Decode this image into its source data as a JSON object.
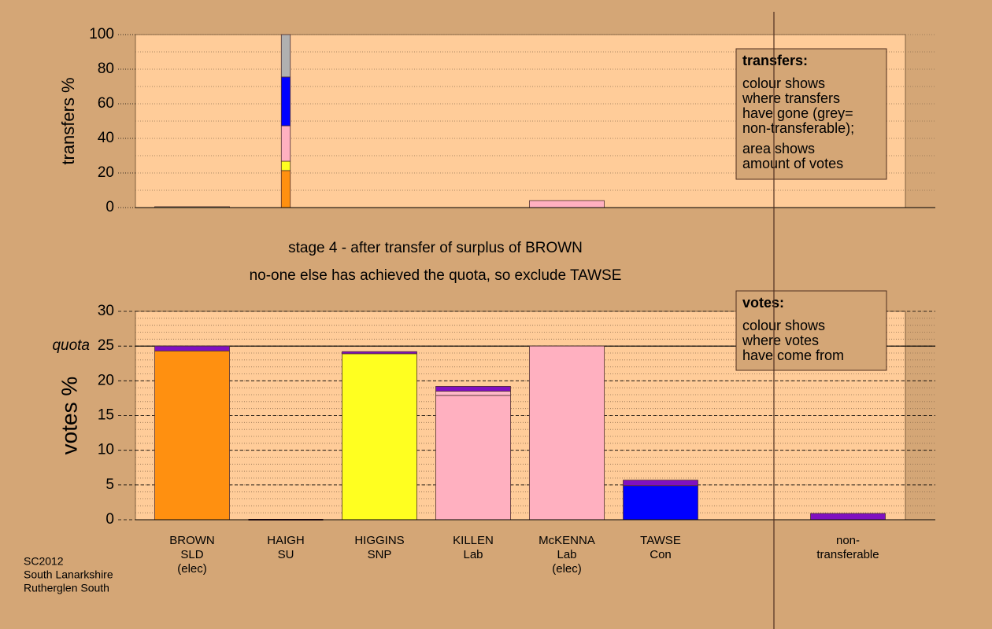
{
  "chart_data": [
    {
      "type": "bar",
      "stacked": true,
      "ylabel": "transfers %",
      "ylim": [
        0,
        100
      ],
      "yticks": [
        0,
        20,
        40,
        60,
        80,
        100
      ],
      "minor_step": 10,
      "grid": true,
      "widths": [
        1,
        0.12,
        null,
        null,
        1,
        null,
        null,
        null
      ],
      "series": [
        {
          "color": "#c8e0a0",
          "values": [
            0.5,
            null,
            null,
            null,
            null,
            null,
            null,
            null
          ]
        },
        {
          "color": "#ff9010",
          "values": [
            null,
            21.4,
            null,
            null,
            null,
            null,
            null,
            null
          ]
        },
        {
          "color": "#ffff20",
          "values": [
            null,
            5.4,
            null,
            null,
            null,
            null,
            null,
            null
          ]
        },
        {
          "color": "#ffb0c0",
          "values": [
            null,
            20.5,
            null,
            null,
            4,
            null,
            null,
            null
          ]
        },
        {
          "color": "#0000ff",
          "values": [
            null,
            28.2,
            null,
            null,
            null,
            null,
            null,
            null
          ]
        },
        {
          "color": "#b0b0b0",
          "values": [
            null,
            24.5,
            null,
            null,
            null,
            null,
            null,
            null
          ]
        }
      ],
      "note": {
        "title": "transfers:",
        "paragraphs": [
          [
            "colour shows",
            "where transfers",
            "have gone (grey=",
            "non-transferable);"
          ],
          [
            "area shows",
            "amount of votes"
          ]
        ]
      }
    },
    {
      "type": "bar",
      "stacked": true,
      "ylabel": "votes %",
      "ylim": [
        0,
        30
      ],
      "yticks": [
        0,
        5,
        10,
        15,
        20,
        25,
        30
      ],
      "minor_step": 1,
      "grid": true,
      "reference_line": {
        "label": "quota",
        "value": 25
      },
      "categories": [
        [
          "BROWN",
          "SLD",
          "(elec)"
        ],
        [
          "HAIGH",
          "SU"
        ],
        [
          "HIGGINS",
          "SNP"
        ],
        [
          "KILLEN",
          "Lab"
        ],
        [
          "McKENNA",
          "Lab",
          "(elec)"
        ],
        [
          "TAWSE",
          "Con"
        ],
        null,
        [
          "non-",
          "transferable"
        ]
      ],
      "series": [
        {
          "color": "#ff9010",
          "values": [
            24.3,
            null,
            null,
            null,
            null,
            null,
            null,
            null
          ]
        },
        {
          "color": "#ffff20",
          "values": [
            null,
            null,
            23.9,
            null,
            null,
            null,
            null,
            null
          ]
        },
        {
          "color": "#ffb0c0",
          "values": [
            null,
            null,
            null,
            17.9,
            25,
            null,
            null,
            null
          ]
        },
        {
          "color": "#ffb8c8",
          "values": [
            null,
            null,
            null,
            0.6,
            null,
            null,
            null,
            null
          ]
        },
        {
          "color": "#0000ff",
          "values": [
            null,
            null,
            null,
            null,
            null,
            4.9,
            null,
            null
          ]
        },
        {
          "color": "#8010c0",
          "values": [
            0.7,
            0,
            0.3,
            0.7,
            null,
            0.8,
            null,
            0.9
          ]
        }
      ],
      "note": {
        "title": "votes:",
        "paragraphs": [
          [
            "colour shows",
            "where votes",
            "have come from"
          ]
        ]
      }
    }
  ],
  "captions": [
    "stage 4 - after transfer of surplus of BROWN",
    "no-one else has achieved the quota, so exclude TAWSE"
  ],
  "footer": [
    "SC2012",
    "South Lanarkshire",
    "Rutherglen South"
  ]
}
